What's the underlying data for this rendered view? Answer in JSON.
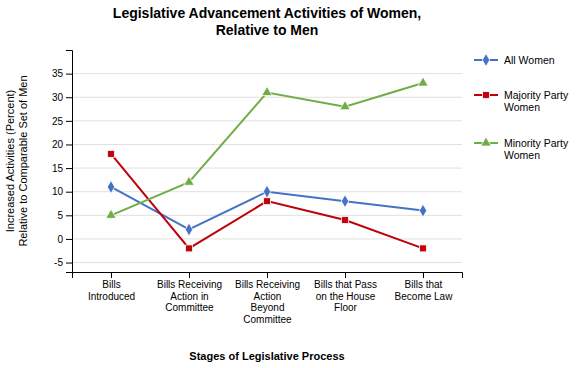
{
  "chart_data": {
    "type": "line",
    "title": "Legislative Advancement Activities of Women,\nRelative to Men",
    "xlabel": "Stages of Legislative Process",
    "ylabel": "Increased Activities (Percent)\nRelative to Comparable Set of Men",
    "categories": [
      "Bills\nIntroduced",
      "Bills Receiving\nAction in\nCommittee",
      "Bills Receiving\nAction\nBeyond\nCommittee",
      "Bills that Pass\non the House\nFloor",
      "Bills that\nBecome Law"
    ],
    "series": [
      {
        "name": "All Women",
        "color": "#4472C4",
        "marker": "diamond",
        "values": [
          11,
          2,
          10,
          8,
          6
        ]
      },
      {
        "name": "Majority Party\nWomen",
        "color": "#C0000A",
        "marker": "square",
        "values": [
          18,
          -2,
          8,
          4,
          -2
        ]
      },
      {
        "name": "Minority Party\nWomen",
        "color": "#70AD47",
        "marker": "triangle",
        "values": [
          5,
          12,
          31,
          28,
          33
        ]
      }
    ],
    "ylim": [
      -7,
      40
    ],
    "yticks": [
      -5,
      0,
      5,
      10,
      15,
      20,
      25,
      30,
      35
    ],
    "grid": true,
    "legend": "right"
  }
}
